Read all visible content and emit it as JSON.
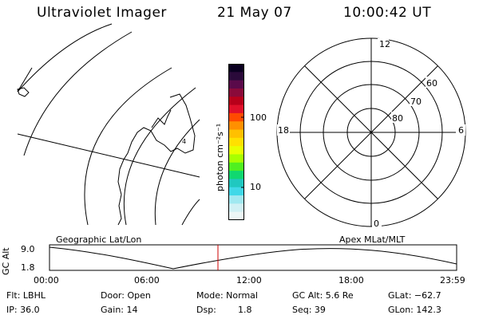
{
  "header": {
    "instrument": "Ultraviolet Imager",
    "date": "21 May 07",
    "time": "10:00:42 UT"
  },
  "colorbar": {
    "unit_label": "photon cm⁻²s⁻¹",
    "ticks": [
      "100",
      "10"
    ],
    "colors": [
      "#0a0020",
      "#2a0a3a",
      "#5a0a4a",
      "#8a0a3a",
      "#b8001a",
      "#e0102a",
      "#ff4a00",
      "#ff9000",
      "#ffc000",
      "#ffe000",
      "#e8ff00",
      "#a8ff00",
      "#50f020",
      "#10d870",
      "#20c8c0",
      "#40d8e8",
      "#a0e8f0",
      "#d0f0f4",
      "#ecf6f6"
    ]
  },
  "polar": {
    "mlt_labels": {
      "top": "12",
      "left": "18",
      "right": "6",
      "bottom": "0"
    },
    "lat_labels": [
      "60",
      "70",
      "80"
    ]
  },
  "timeline": {
    "left_title": "Geographic Lat/Lon",
    "right_title": "Apex MLat/MLT",
    "axis_label": "GC Alt",
    "y_ticks": [
      "9.0",
      "1.8"
    ],
    "x_ticks": [
      "00:00",
      "06:00",
      "12:00",
      "18:00",
      "23:59"
    ],
    "marker_color": "#cc0000"
  },
  "footer": {
    "filter": "Flt: LBHL",
    "door": "Door: Open",
    "mode": "Mode: Normal",
    "gc_alt": "GC Alt: 5.6 Re",
    "glat": "GLat: −62.7",
    "ip": "IP: 36.0",
    "gain": "Gain: 14",
    "dsp_label": "Dsp:",
    "dsp_value": "1.8",
    "seq": "Seq: 39",
    "glon": "GLon: 142.3"
  }
}
